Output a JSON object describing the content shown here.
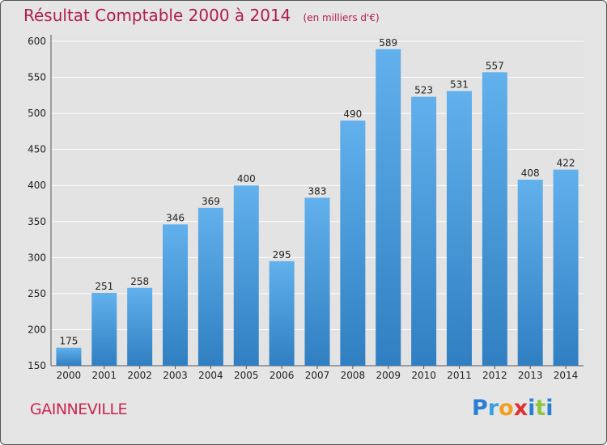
{
  "header": {
    "title": "Résultat Comptable 2000 à 2014",
    "subtitle": "(en milliers d'€)"
  },
  "footer": {
    "city": "GAINNEVILLE",
    "logo": {
      "text": "Proxiti",
      "letters": [
        {
          "ch": "P",
          "color": "#2a7fd4"
        },
        {
          "ch": "r",
          "color": "#3aa0e0"
        },
        {
          "ch": "o",
          "color": "#f0a020"
        },
        {
          "ch": "x",
          "color": "#e03030"
        },
        {
          "ch": "i",
          "color": "#2a7fd4"
        },
        {
          "ch": "t",
          "color": "#8cc63f"
        },
        {
          "ch": "i",
          "color": "#2a7fd4"
        }
      ]
    }
  },
  "colors": {
    "bar_top": "#62b0ec",
    "bar_bottom": "#2f7fc2",
    "grid": "#ffffff",
    "title": "#b01c4e"
  },
  "chart_data": {
    "type": "bar",
    "categories": [
      "2000",
      "2001",
      "2002",
      "2003",
      "2004",
      "2005",
      "2006",
      "2007",
      "2008",
      "2009",
      "2010",
      "2011",
      "2012",
      "2013",
      "2014"
    ],
    "values": [
      175,
      251,
      258,
      346,
      369,
      400,
      295,
      383,
      490,
      589,
      523,
      531,
      557,
      408,
      422
    ],
    "ylim": [
      150,
      600
    ],
    "yticks": [
      150,
      200,
      250,
      300,
      350,
      400,
      450,
      500,
      550,
      600
    ],
    "grid": true,
    "data_labels": true
  }
}
